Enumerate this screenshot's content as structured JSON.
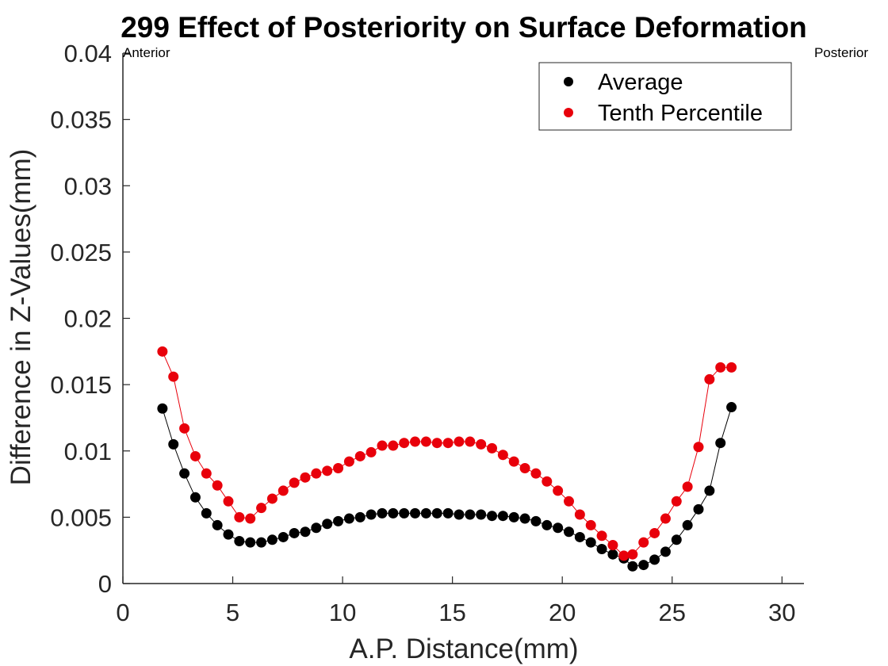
{
  "chart_data": {
    "type": "scatter",
    "title": "299  Effect of Posteriority on Surface Deformation",
    "xlabel": "A.P. Distance(mm)",
    "ylabel": "Difference in Z-Values(mm)",
    "xlim": [
      0,
      31
    ],
    "ylim": [
      0,
      0.04
    ],
    "xticks": [
      0,
      5,
      10,
      15,
      20,
      25,
      30
    ],
    "yticks": [
      0,
      0.005,
      0.01,
      0.015,
      0.02,
      0.025,
      0.03,
      0.035,
      0.04
    ],
    "ytick_labels": [
      "0",
      "0.005",
      "0.01",
      "0.015",
      "0.02",
      "0.025",
      "0.03",
      "0.035",
      "0.04"
    ],
    "grid": false,
    "legend_position": "top-right",
    "annotations": {
      "left": "Anterior",
      "right": "Posterior"
    },
    "x": [
      1.8,
      2.3,
      2.8,
      3.3,
      3.8,
      4.3,
      4.8,
      5.3,
      5.8,
      6.3,
      6.8,
      7.3,
      7.8,
      8.3,
      8.8,
      9.3,
      9.8,
      10.3,
      10.8,
      11.3,
      11.8,
      12.3,
      12.8,
      13.3,
      13.8,
      14.3,
      14.8,
      15.3,
      15.8,
      16.3,
      16.8,
      17.3,
      17.8,
      18.3,
      18.8,
      19.3,
      19.8,
      20.3,
      20.8,
      21.3,
      21.8,
      22.3,
      22.8,
      23.2,
      23.7,
      24.2,
      24.7,
      25.2,
      25.7,
      26.2,
      26.7,
      27.2,
      27.7
    ],
    "series": [
      {
        "name": "Average",
        "color": "#000000",
        "values": [
          0.0132,
          0.0105,
          0.0083,
          0.0065,
          0.0053,
          0.0044,
          0.0037,
          0.0032,
          0.0031,
          0.0031,
          0.0033,
          0.0035,
          0.0038,
          0.0039,
          0.0042,
          0.0045,
          0.0047,
          0.0049,
          0.005,
          0.0052,
          0.0053,
          0.0053,
          0.0053,
          0.0053,
          0.0053,
          0.0053,
          0.0053,
          0.0052,
          0.0052,
          0.0052,
          0.0051,
          0.0051,
          0.005,
          0.0049,
          0.0047,
          0.0044,
          0.0042,
          0.0039,
          0.0035,
          0.0031,
          0.0026,
          0.0022,
          0.0019,
          0.0013,
          0.0014,
          0.0018,
          0.0024,
          0.0033,
          0.0044,
          0.0056,
          0.007,
          0.0106,
          0.0133
        ]
      },
      {
        "name": "Tenth Percentile",
        "color": "#e8000b",
        "values": [
          0.0175,
          0.0156,
          0.0117,
          0.0096,
          0.0083,
          0.0074,
          0.0062,
          0.005,
          0.0049,
          0.0057,
          0.0064,
          0.007,
          0.0076,
          0.008,
          0.0083,
          0.0085,
          0.0087,
          0.0092,
          0.0096,
          0.0099,
          0.0104,
          0.0104,
          0.0106,
          0.0107,
          0.0107,
          0.0106,
          0.0106,
          0.0107,
          0.0107,
          0.0105,
          0.0102,
          0.0097,
          0.0092,
          0.0087,
          0.0083,
          0.0077,
          0.007,
          0.0062,
          0.0052,
          0.0044,
          0.0036,
          0.0029,
          0.0021,
          0.0022,
          0.0031,
          0.0038,
          0.0049,
          0.0062,
          0.0073,
          0.0103,
          0.0154,
          0.0163,
          0.0163
        ]
      }
    ]
  }
}
